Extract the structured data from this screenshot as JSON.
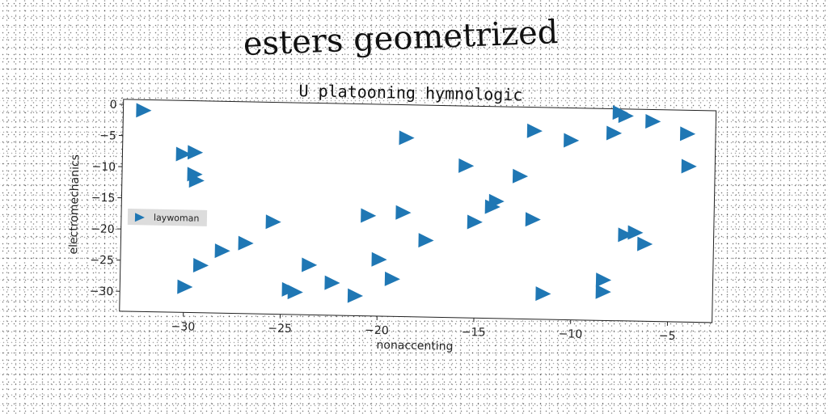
{
  "title": "esters geometrized",
  "chart_data": {
    "type": "scatter",
    "subtitle": "U platooning hymnologic",
    "xlabel": "nonaccenting",
    "ylabel": "electromechanics",
    "xlim": [
      -33.3,
      -2.7
    ],
    "ylim": [
      -33.2,
      0.8
    ],
    "xticks": [
      -30,
      -25,
      -20,
      -15,
      -10,
      -5
    ],
    "yticks": [
      0,
      -5,
      -10,
      -15,
      -20,
      -25,
      -30
    ],
    "xtick_labels": [
      "−30",
      "−25",
      "−20",
      "−15",
      "−10",
      "−5"
    ],
    "ytick_labels": [
      "0",
      "−5",
      "−10",
      "−15",
      "−20",
      "−25",
      "−30"
    ],
    "grid": false,
    "legend_position": "center-left",
    "marker": "triangle-right",
    "color": "#1f77b4",
    "series": [
      {
        "name": "laywoman",
        "points": [
          [
            -32.3,
            -0.9
          ],
          [
            -30.2,
            -7.8
          ],
          [
            -29.6,
            -7.5
          ],
          [
            -29.6,
            -11.0
          ],
          [
            -29.5,
            -12.0
          ],
          [
            -30.0,
            -29.1
          ],
          [
            -29.2,
            -25.6
          ],
          [
            -28.1,
            -23.2
          ],
          [
            -26.9,
            -21.9
          ],
          [
            -25.5,
            -18.4
          ],
          [
            -24.6,
            -29.2
          ],
          [
            -24.3,
            -29.6
          ],
          [
            -23.6,
            -25.2
          ],
          [
            -22.4,
            -28.0
          ],
          [
            -21.2,
            -30.0
          ],
          [
            -20.6,
            -17.1
          ],
          [
            -20.0,
            -24.1
          ],
          [
            -19.3,
            -27.2
          ],
          [
            -18.7,
            -4.5
          ],
          [
            -18.8,
            -16.5
          ],
          [
            -17.6,
            -20.9
          ],
          [
            -15.6,
            -8.8
          ],
          [
            -15.1,
            -17.8
          ],
          [
            -14.2,
            -15.3
          ],
          [
            -14.0,
            -14.4
          ],
          [
            -12.8,
            -10.3
          ],
          [
            -12.1,
            -3.0
          ],
          [
            -12.1,
            -17.2
          ],
          [
            -11.5,
            -29.1
          ],
          [
            -10.2,
            -4.4
          ],
          [
            -8.4,
            -26.7
          ],
          [
            -8.4,
            -28.6
          ],
          [
            -8.0,
            -3.1
          ],
          [
            -7.7,
            0.2
          ],
          [
            -7.4,
            -0.3
          ],
          [
            -7.3,
            -19.4
          ],
          [
            -6.8,
            -19.0
          ],
          [
            -6.3,
            -20.8
          ],
          [
            -6.0,
            -1.1
          ],
          [
            -4.2,
            -3.0
          ],
          [
            -4.1,
            -8.2
          ]
        ]
      }
    ]
  }
}
